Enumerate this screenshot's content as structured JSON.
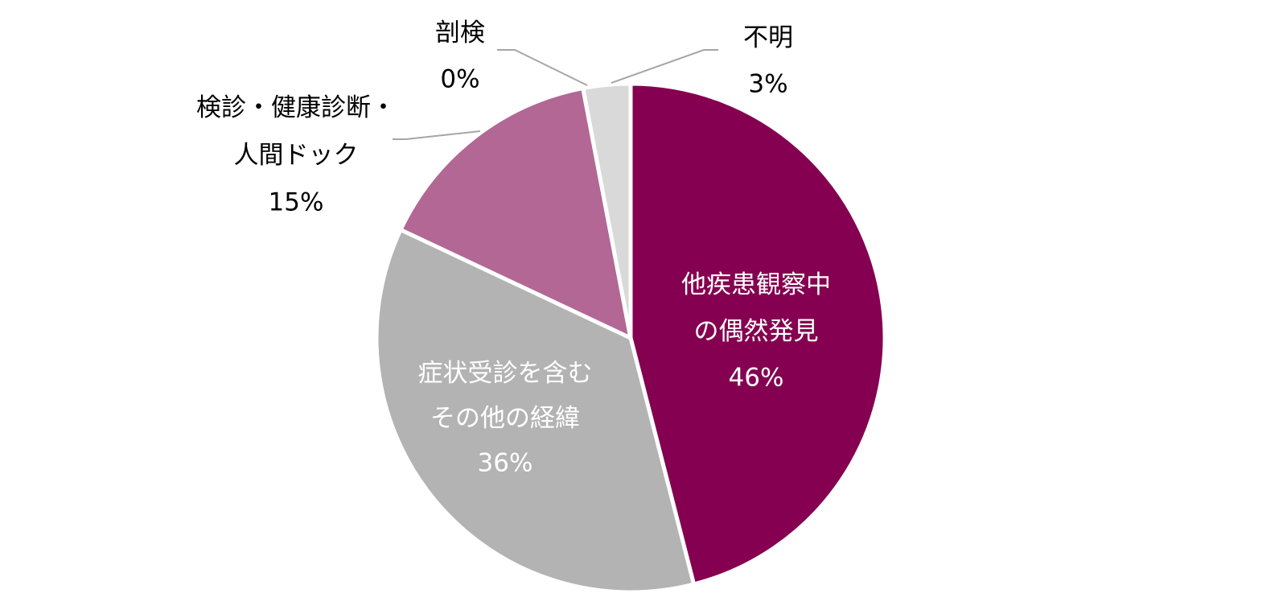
{
  "chart_data": {
    "type": "pie",
    "categories": [
      "他疾患観察中\nの偶然発見",
      "症状受診を含む\nその他の経緯",
      "検診・健康診断・\n人間ドック",
      "剖検",
      "不明"
    ],
    "values": [
      46,
      36,
      15,
      0,
      3
    ],
    "value_labels": [
      "46%",
      "36%",
      "15%",
      "0%",
      "3%"
    ],
    "colors": [
      "#850050",
      "#b3b3b3",
      "#b26794",
      "#808080",
      "#d9d9d9"
    ]
  }
}
